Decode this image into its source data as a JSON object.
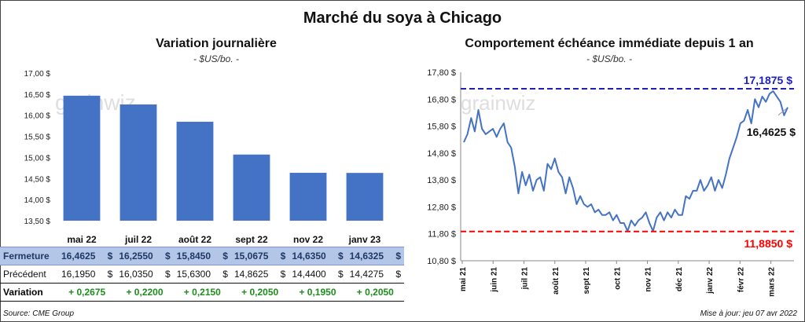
{
  "title": "Marché du soya à Chicago",
  "left": {
    "title": "Variation journalière",
    "subtitle": "- $US/bo. -",
    "watermark": "grainwiz"
  },
  "right": {
    "title": "Comportement échéance immédiate depuis 1 an",
    "subtitle": "- $US/bo. -",
    "watermark": "grainwiz",
    "max_label": "17,1875 $",
    "min_label": "11,8850 $",
    "last_label": "16,4625 $"
  },
  "table": {
    "rows": [
      {
        "label": "Fermeture",
        "values": [
          "16,4625",
          "16,2550",
          "15,8450",
          "15,0675",
          "14,6350",
          "14,6325"
        ],
        "unit": "$"
      },
      {
        "label": "Précédent",
        "values": [
          "16,1950",
          "16,0350",
          "15,6300",
          "14,8625",
          "14,4400",
          "14,4275"
        ],
        "unit": "$"
      },
      {
        "label": "Variation",
        "values": [
          "+ 0,2675",
          "+ 0,2200",
          "+ 0,2150",
          "+ 0,2050",
          "+ 0,1950",
          "+ 0,2050"
        ],
        "unit": ""
      }
    ]
  },
  "footer": {
    "source": "Source: CME Group",
    "updated": "Mise à jour: jeu 07 avr 2022"
  },
  "chart_data": [
    {
      "type": "bar",
      "title": "Variation journalière",
      "subtitle": "- $US/bo. -",
      "categories": [
        "mai 22",
        "juil 22",
        "août 22",
        "sept 22",
        "nov 22",
        "janv 23"
      ],
      "values": [
        16.4625,
        16.255,
        15.845,
        15.0675,
        14.635,
        14.6325
      ],
      "ylim": [
        13.5,
        17.0
      ],
      "yticks": [
        13.5,
        14.0,
        14.5,
        15.0,
        15.5,
        16.0,
        16.5,
        17.0
      ],
      "ytick_labels": [
        "13,50 $",
        "14,00 $",
        "14,50 $",
        "15,00 $",
        "15,50 $",
        "16,00 $",
        "16,50 $",
        "17,00 $"
      ],
      "color": "#4472c4",
      "grid": false,
      "legend": "none"
    },
    {
      "type": "line",
      "title": "Comportement échéance immédiate depuis 1 an",
      "subtitle": "- $US/bo. -",
      "ylim": [
        10.8,
        17.8
      ],
      "yticks": [
        10.8,
        11.8,
        12.8,
        13.8,
        14.8,
        15.8,
        16.8,
        17.8
      ],
      "ytick_labels": [
        "10,80 $",
        "11,80 $",
        "12,80 $",
        "13,80 $",
        "14,80 $",
        "15,80 $",
        "16,80 $",
        "17,80 $"
      ],
      "xticks": [
        "mai 21",
        "juin 21",
        "juil 21",
        "août 21",
        "sept 21",
        "oct 21",
        "nov 21",
        "déc 21",
        "janv 22",
        "févr 22",
        "mars 22"
      ],
      "series": [
        {
          "color": "#4472c4",
          "values": [
            15.2,
            15.5,
            16.1,
            15.6,
            16.4,
            15.7,
            15.5,
            15.6,
            15.7,
            15.4,
            15.7,
            15.9,
            15.2,
            15.0,
            14.3,
            13.3,
            14.1,
            13.6,
            14.0,
            13.4,
            13.8,
            13.9,
            13.4,
            14.4,
            14.2,
            14.6,
            14.1,
            13.9,
            13.3,
            13.9,
            13.5,
            12.9,
            13.2,
            12.9,
            12.8,
            12.9,
            12.6,
            12.7,
            12.5,
            12.5,
            12.6,
            12.3,
            12.5,
            12.2,
            12.2,
            11.9,
            12.3,
            12.1,
            12.3,
            12.4,
            12.6,
            12.2,
            11.9,
            12.4,
            12.6,
            12.3,
            12.6,
            12.4,
            12.7,
            12.5,
            12.5,
            13.2,
            13.1,
            13.4,
            13.4,
            13.8,
            13.4,
            13.6,
            13.9,
            13.4,
            13.8,
            13.5,
            14.0,
            14.6,
            15.0,
            15.4,
            15.9,
            16.0,
            16.4,
            15.9,
            16.8,
            16.5,
            16.9,
            16.7,
            17.0,
            17.1,
            16.9,
            16.7,
            16.2,
            16.5
          ]
        },
        {
          "color": "#1f1fbf",
          "dashed": true,
          "constant": 17.1875
        },
        {
          "color": "#ff0000",
          "dashed": true,
          "constant": 11.885
        }
      ],
      "annotations": [
        "17,1875 $",
        "11,8850 $",
        "16,4625 $"
      ],
      "grid": false,
      "legend": "none"
    }
  ]
}
